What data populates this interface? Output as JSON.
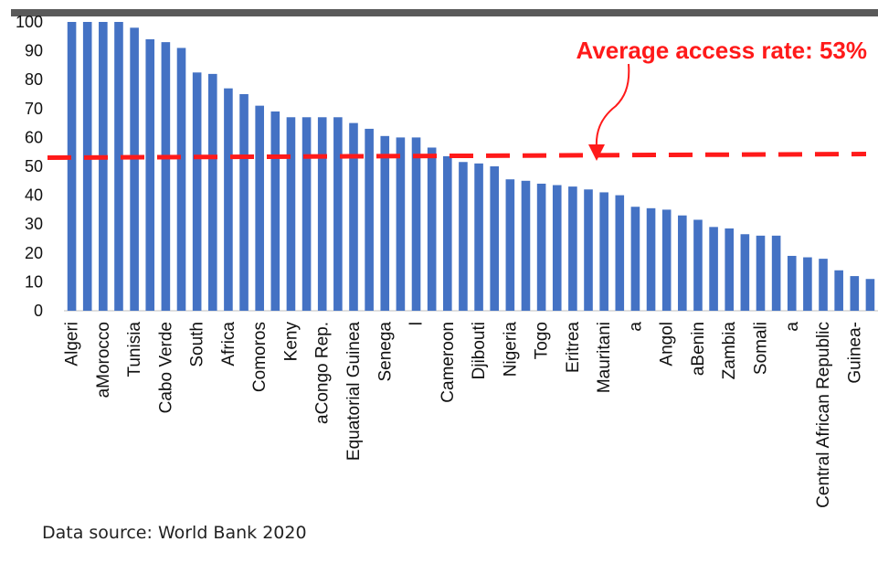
{
  "chart_data": {
    "type": "bar",
    "ylim": [
      0,
      100
    ],
    "yticks": [
      0,
      10,
      20,
      30,
      40,
      50,
      60,
      70,
      80,
      90,
      100
    ],
    "grid": false,
    "categories": [
      "Algeri",
      "",
      "aMorocco",
      "",
      "Tunisia",
      "",
      "Cabo Verde",
      "",
      "South",
      "",
      "Africa",
      "",
      "Comoros",
      "",
      "Keny",
      "",
      "aCongo Rep.",
      "",
      "Equatorial Guinea",
      "",
      "Senega",
      "",
      "l",
      "",
      "Cameroon",
      "",
      "Djibouti",
      "",
      "Nigeria",
      "",
      "Togo",
      "",
      "Eritrea",
      "",
      "Mauritani",
      "",
      "a",
      "",
      "Angol",
      "",
      "aBenin",
      "",
      "Zambia",
      "",
      "Somali",
      "",
      "a",
      "",
      "Central African Republic",
      "",
      "Guinea-",
      ""
    ],
    "values": [
      100,
      100,
      100,
      100,
      98,
      94,
      93,
      91,
      82.5,
      82,
      77,
      75,
      71,
      69,
      67,
      67,
      67,
      67,
      65,
      63,
      60.5,
      60,
      60,
      56.5,
      53.5,
      51.5,
      51,
      50,
      45.5,
      45,
      44,
      43.5,
      43,
      42,
      41,
      40,
      36,
      35.5,
      35,
      33,
      31.5,
      29,
      28.5,
      26.5,
      26,
      26,
      19,
      18.5,
      18,
      14,
      12,
      11
    ],
    "bar_color": "#4472c4",
    "average_line": {
      "value": 53,
      "color": "#ff1a1a",
      "label": "Average access rate: 53%"
    },
    "source": "Data source: World Bank 2020"
  }
}
